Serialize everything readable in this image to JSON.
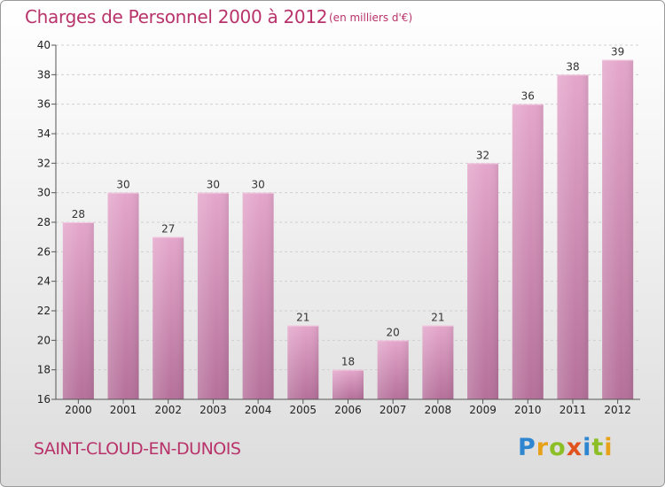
{
  "header": {
    "title": "Charges de Personnel 2000 à 2012",
    "subtitle": "(en milliers d'€)"
  },
  "footer": {
    "commune": "SAINT-CLOUD-EN-DUNOIS",
    "logo_letters": [
      {
        "char": "P",
        "color": "#2e86d1"
      },
      {
        "char": "r",
        "color": "#e8a21a"
      },
      {
        "char": "o",
        "color": "#8cbf26"
      },
      {
        "char": "x",
        "color": "#e0531e"
      },
      {
        "char": "i",
        "color": "#2e86d1"
      },
      {
        "char": "t",
        "color": "#8cbf26"
      },
      {
        "char": "i",
        "color": "#e8a21a"
      }
    ]
  },
  "chart_data": {
    "type": "bar",
    "title": "Charges de Personnel 2000 à 2012",
    "categories": [
      "2000",
      "2001",
      "2002",
      "2003",
      "2004",
      "2005",
      "2006",
      "2007",
      "2008",
      "2009",
      "2010",
      "2011",
      "2012"
    ],
    "values": [
      28,
      30,
      27,
      30,
      30,
      21,
      18,
      20,
      21,
      32,
      36,
      38,
      39
    ],
    "ylim": [
      16,
      40
    ],
    "yticks": [
      16,
      18,
      20,
      22,
      24,
      26,
      28,
      30,
      32,
      34,
      36,
      38,
      40
    ],
    "grid": true,
    "bar_color_top": "#e4a6cb",
    "bar_color_bottom": "#b5709a"
  }
}
